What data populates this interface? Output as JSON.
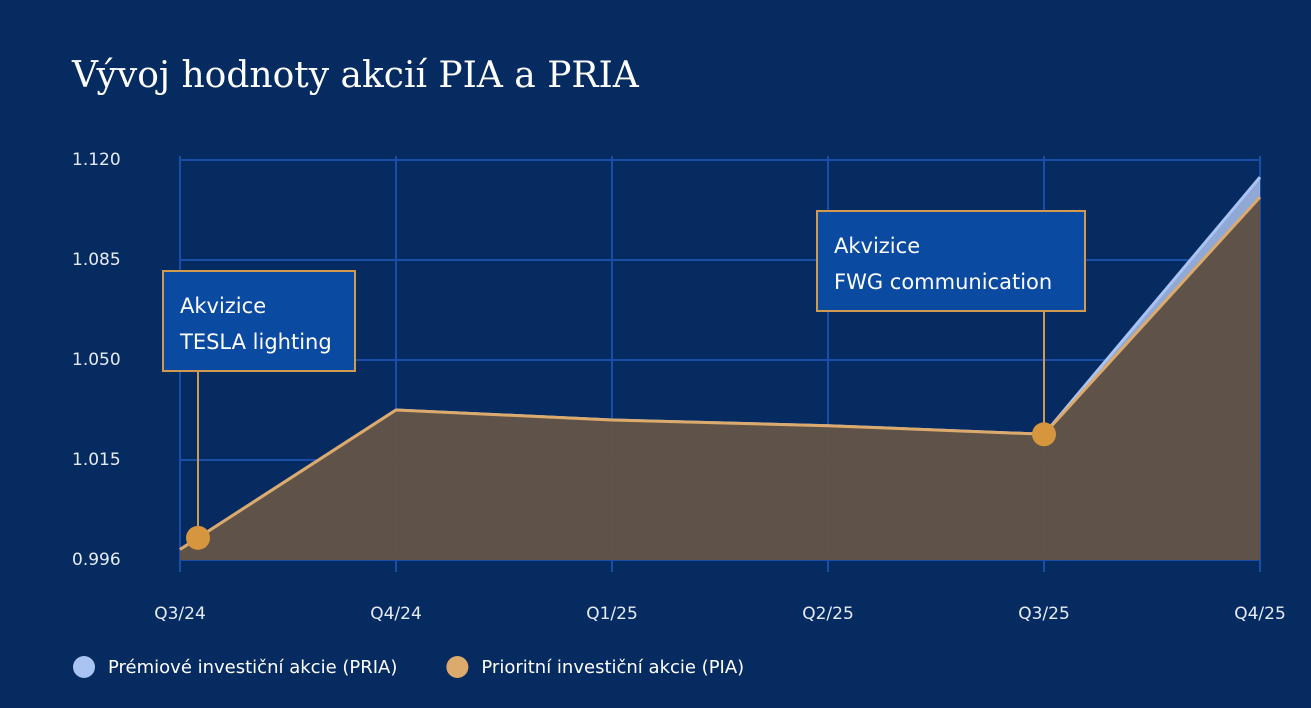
{
  "chart_data": {
    "type": "area",
    "title": "Vývoj hodnoty akcií PIA a PRIA",
    "categories": [
      "Q3/24",
      "Q4/24",
      "Q1/25",
      "Q2/25",
      "Q3/25",
      "Q4/25"
    ],
    "series": [
      {
        "name": "Prémiové investiční akcie (PRIA)",
        "color": "#a9c3f2",
        "values": [
          0.998,
          1.0325,
          1.029,
          1.027,
          1.024,
          1.114
        ]
      },
      {
        "name": "Prioritní investiční akcie (PIA)",
        "color": "#dcaa6c",
        "values": [
          0.998,
          1.0325,
          1.029,
          1.027,
          1.024,
          1.107
        ]
      }
    ],
    "ylim": [
      0.996,
      1.12
    ],
    "yticks": [
      {
        "value": 0.996,
        "label": "0.996"
      },
      1.015,
      {
        "value": 1.05,
        "label": "1.050"
      },
      1.085,
      {
        "value": 1.12,
        "label": "1.120"
      }
    ],
    "grid": true,
    "annotations": [
      {
        "lines": [
          "Akvizice",
          "TESLA lighting"
        ],
        "category": 0
      },
      {
        "lines": [
          "Akvizice",
          "FWG communication"
        ],
        "category": 4
      }
    ]
  }
}
